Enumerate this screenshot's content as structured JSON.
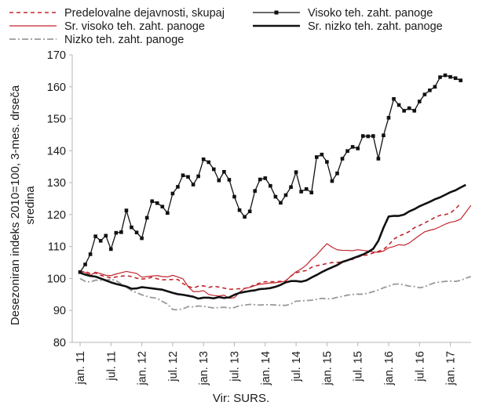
{
  "chart_data": {
    "type": "line",
    "ylabel_lines": [
      "Desezoniran indeks 2010=100, 3-mes. drseča",
      "sredina"
    ],
    "xlabel": "Vir: SURS.",
    "ylim": [
      80,
      170
    ],
    "yticks": [
      80,
      90,
      100,
      110,
      120,
      130,
      140,
      150,
      160,
      170
    ],
    "x_start": "2011-01",
    "x_end": "2017-06",
    "x_tick_labels": [
      "jan. 11",
      "jul. 11",
      "jan. 12",
      "jul. 12",
      "jan. 13",
      "jul. 13",
      "jan. 14",
      "jul. 14",
      "jan. 15",
      "jul. 15",
      "jan. 16",
      "jul. 16",
      "jan. 17"
    ],
    "grid": false,
    "legend_position": "top",
    "series": [
      {
        "name": "Predelovalne dejavnosti, skupaj",
        "color": "#c0262e",
        "style": "dashed",
        "values": [
          101.9,
          102.3,
          101.5,
          101.7,
          101.0,
          100.6,
          100.2,
          100.5,
          100.7,
          100.9,
          100.6,
          100.1,
          99.8,
          100.0,
          100.4,
          99.9,
          99.6,
          99.6,
          99.7,
          99.7,
          98.4,
          97.6,
          97.0,
          97.6,
          97.7,
          97.2,
          97.6,
          97.3,
          97.0,
          96.6,
          96.7,
          96.8,
          96.9,
          97.3,
          98.1,
          98.6,
          99.0,
          99.0,
          99.0,
          99.1,
          99.3,
          100.8,
          101.8,
          102.2,
          102.5,
          103.5,
          104.0,
          104.3,
          104.7,
          105.0,
          105.0,
          105.3,
          105.7,
          106.0,
          106.7,
          107.2,
          107.4,
          108.0,
          108.5,
          109.1,
          110.5,
          112.3,
          113.3,
          113.9,
          114.7,
          115.9,
          116.6,
          117.4,
          118.2,
          119.1,
          119.8,
          120.0,
          120.5,
          121.8,
          123.5,
          null,
          null,
          null
        ]
      },
      {
        "name": "Visoko teh. zaht. panoge",
        "color": "#111111",
        "style": "solid-markers",
        "values": [
          102.0,
          104.4,
          107.6,
          113.2,
          111.8,
          113.4,
          109.2,
          114.3,
          114.5,
          121.3,
          116.0,
          114.4,
          112.6,
          119.0,
          124.2,
          123.6,
          122.5,
          120.5,
          126.6,
          128.7,
          132.3,
          131.8,
          129.4,
          132.0,
          137.3,
          136.4,
          134.2,
          130.7,
          133.4,
          130.9,
          125.6,
          121.4,
          119.3,
          121.0,
          127.4,
          131.0,
          131.4,
          129.0,
          125.6,
          123.7,
          126.1,
          128.6,
          133.3,
          127.2,
          128.0,
          126.9,
          138.0,
          138.8,
          136.5,
          130.5,
          132.9,
          137.5,
          139.9,
          141.2,
          140.7,
          144.6,
          144.5,
          144.6,
          137.5,
          144.8,
          150.3,
          156.2,
          154.3,
          152.5,
          153.3,
          152.5,
          155.4,
          157.6,
          158.9,
          160.0,
          163.0,
          163.6,
          163.1,
          162.7,
          162.0,
          null,
          null,
          null
        ]
      },
      {
        "name": "Sr. visoko teh. zaht. panoge",
        "color": "#c0262e",
        "style": "solid-thin",
        "values": [
          102.4,
          101.9,
          101.0,
          102.0,
          101.5,
          101.0,
          100.9,
          101.4,
          101.8,
          102.2,
          101.9,
          101.6,
          100.4,
          100.6,
          100.8,
          100.9,
          100.6,
          100.5,
          101.0,
          100.5,
          99.9,
          97.5,
          95.9,
          95.9,
          96.2,
          95.0,
          94.7,
          94.5,
          94.8,
          93.8,
          94.0,
          95.7,
          96.9,
          97.2,
          97.8,
          98.2,
          98.4,
          98.6,
          98.7,
          98.9,
          99.2,
          100.8,
          102.1,
          103.0,
          104.2,
          106.0,
          107.4,
          109.2,
          110.9,
          109.8,
          109.0,
          108.8,
          108.8,
          108.7,
          109.0,
          108.8,
          108.6,
          108.3,
          108.2,
          108.6,
          109.6,
          110.0,
          110.6,
          110.4,
          111.1,
          112.3,
          113.5,
          114.6,
          115.1,
          115.5,
          116.2,
          117.0,
          117.6,
          117.9,
          118.6,
          120.7,
          122.9,
          null
        ]
      },
      {
        "name": "Sr. nizko teh. zaht. panoge",
        "color": "#111111",
        "style": "solid-thick",
        "values": [
          101.8,
          101.2,
          100.8,
          100.6,
          100.0,
          99.4,
          98.8,
          98.3,
          97.9,
          97.5,
          96.8,
          96.9,
          97.3,
          97.1,
          96.9,
          96.7,
          96.5,
          96.0,
          95.5,
          95.1,
          94.9,
          94.6,
          94.3,
          93.7,
          94.0,
          94.0,
          93.8,
          94.2,
          93.9,
          94.1,
          94.9,
          95.5,
          95.8,
          96.1,
          96.3,
          96.7,
          96.8,
          97.0,
          97.4,
          98.0,
          98.8,
          99.2,
          99.2,
          99.0,
          99.4,
          100.3,
          101.1,
          102.0,
          102.8,
          103.5,
          104.2,
          105.2,
          105.7,
          106.3,
          106.9,
          107.5,
          108.3,
          109.3,
          111.8,
          115.9,
          119.4,
          119.6,
          119.6,
          120.0,
          121.0,
          121.7,
          122.6,
          123.3,
          124.0,
          124.8,
          125.4,
          126.2,
          127.0,
          127.6,
          128.5,
          129.3,
          null,
          null
        ]
      },
      {
        "name": "Nizko teh. zaht. panoge",
        "color": "#999999",
        "style": "dashdot",
        "values": [
          100.0,
          99.1,
          98.9,
          99.5,
          99.4,
          99.4,
          99.8,
          99.3,
          98.3,
          97.3,
          96.2,
          95.6,
          94.9,
          94.4,
          94.0,
          93.8,
          92.8,
          92.0,
          90.3,
          90.2,
          90.5,
          91.2,
          91.1,
          91.4,
          91.3,
          91.0,
          90.8,
          90.9,
          91.0,
          90.8,
          90.9,
          91.5,
          91.7,
          91.9,
          91.8,
          91.7,
          91.8,
          91.8,
          91.7,
          91.6,
          91.6,
          92.0,
          92.9,
          93.0,
          93.1,
          93.2,
          93.5,
          93.8,
          93.6,
          93.7,
          94.1,
          94.4,
          94.8,
          95.0,
          95.1,
          95.1,
          95.4,
          95.9,
          96.4,
          97.1,
          97.6,
          98.2,
          98.3,
          98.0,
          97.6,
          97.5,
          97.1,
          97.4,
          98.1,
          98.7,
          98.9,
          99.1,
          99.2,
          99.1,
          99.4,
          100.1,
          100.6,
          null
        ]
      }
    ]
  }
}
